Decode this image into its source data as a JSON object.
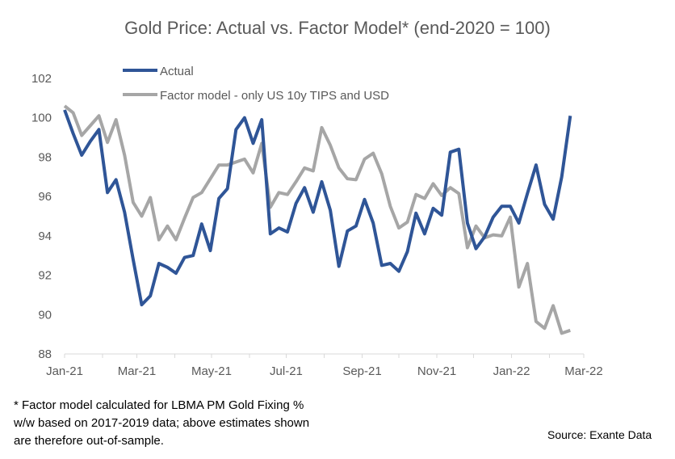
{
  "chart_data": {
    "type": "line",
    "title": "Gold Price: Actual vs. Factor Model* (end-2020 = 100)",
    "xlabel": "",
    "ylabel": "",
    "ylim": [
      88,
      102
    ],
    "yticks": [
      "88",
      "90",
      "92",
      "94",
      "96",
      "98",
      "100",
      "102"
    ],
    "xlim": [
      "2021-01-01",
      "2022-03-01"
    ],
    "xticks": [
      {
        "date": "2021-01-01",
        "label": "Jan-21"
      },
      {
        "date": "2021-03-01",
        "label": "Mar-21"
      },
      {
        "date": "2021-05-01",
        "label": "May-21"
      },
      {
        "date": "2021-07-01",
        "label": "Jul-21"
      },
      {
        "date": "2021-09-01",
        "label": "Sep-21"
      },
      {
        "date": "2021-11-01",
        "label": "Nov-21"
      },
      {
        "date": "2022-01-01",
        "label": "Jan-22"
      },
      {
        "date": "2022-03-01",
        "label": "Mar-22"
      }
    ],
    "grid": false,
    "legend_position": "top-left",
    "x": [
      "2021-01-01",
      "2021-01-08",
      "2021-01-15",
      "2021-01-22",
      "2021-01-29",
      "2021-02-05",
      "2021-02-12",
      "2021-02-19",
      "2021-02-26",
      "2021-03-05",
      "2021-03-12",
      "2021-03-19",
      "2021-03-26",
      "2021-04-02",
      "2021-04-09",
      "2021-04-16",
      "2021-04-23",
      "2021-04-30",
      "2021-05-07",
      "2021-05-14",
      "2021-05-21",
      "2021-05-28",
      "2021-06-04",
      "2021-06-11",
      "2021-06-18",
      "2021-06-25",
      "2021-07-02",
      "2021-07-09",
      "2021-07-16",
      "2021-07-23",
      "2021-07-30",
      "2021-08-06",
      "2021-08-13",
      "2021-08-20",
      "2021-08-27",
      "2021-09-03",
      "2021-09-10",
      "2021-09-17",
      "2021-09-24",
      "2021-10-01",
      "2021-10-08",
      "2021-10-15",
      "2021-10-22",
      "2021-10-29",
      "2021-11-05",
      "2021-11-12",
      "2021-11-19",
      "2021-11-26",
      "2021-12-03",
      "2021-12-10",
      "2021-12-17",
      "2021-12-24",
      "2021-12-31",
      "2022-01-07",
      "2022-01-14",
      "2022-01-21",
      "2022-01-28",
      "2022-02-04",
      "2022-02-11",
      "2022-02-18"
    ],
    "series": [
      {
        "name": "Actual",
        "color": "#2F5597",
        "values": [
          100.4,
          99.2,
          98.1,
          98.8,
          99.4,
          96.2,
          96.85,
          95.2,
          92.8,
          90.5,
          90.95,
          92.6,
          92.4,
          92.1,
          92.9,
          93.0,
          94.6,
          93.25,
          95.9,
          96.4,
          99.4,
          100.0,
          98.7,
          99.9,
          94.1,
          94.4,
          94.2,
          95.65,
          96.45,
          95.2,
          96.75,
          95.3,
          92.45,
          94.25,
          94.5,
          95.85,
          94.65,
          92.5,
          92.6,
          92.2,
          93.2,
          95.15,
          94.1,
          95.4,
          95.05,
          98.25,
          98.4,
          94.65,
          93.35,
          93.95,
          94.95,
          95.5,
          95.5,
          94.65,
          96.15,
          97.6,
          95.6,
          94.85,
          97.0,
          100.1
        ]
      },
      {
        "name": "Factor model - only US 10y TIPS and USD",
        "color": "#A6A6A6",
        "values": [
          100.6,
          100.25,
          99.1,
          99.6,
          100.1,
          98.75,
          99.9,
          98.1,
          95.7,
          95.0,
          95.95,
          93.8,
          94.5,
          93.8,
          94.9,
          95.95,
          96.2,
          96.9,
          97.6,
          97.6,
          97.75,
          97.9,
          97.2,
          98.7,
          95.45,
          96.2,
          96.1,
          96.75,
          97.45,
          97.3,
          99.5,
          98.6,
          97.45,
          96.9,
          96.85,
          97.9,
          98.2,
          97.15,
          95.5,
          94.4,
          94.7,
          96.1,
          95.9,
          96.65,
          96.05,
          96.45,
          96.15,
          93.4,
          94.5,
          93.9,
          94.05,
          94.0,
          94.95,
          91.4,
          92.6,
          89.65,
          89.3,
          90.45,
          89.05,
          89.2
        ]
      }
    ]
  },
  "footnote": "* Factor model calculated for LBMA PM Gold Fixing % w/w based on 2017-2019 data; above estimates shown are therefore out-of-sample.",
  "source": "Source: Exante Data"
}
